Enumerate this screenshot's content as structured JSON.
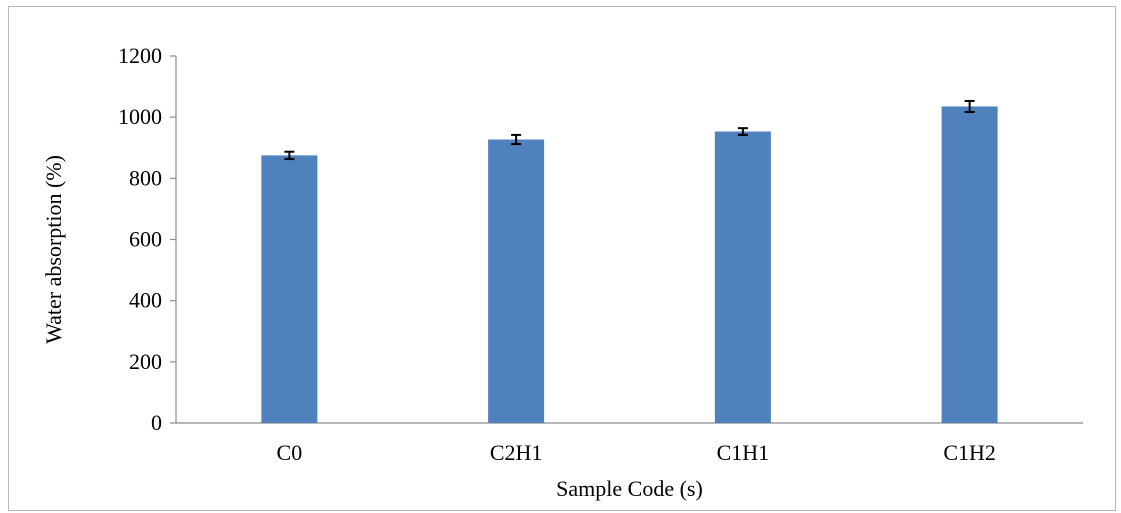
{
  "chart_data": {
    "type": "bar",
    "title": "",
    "xlabel": "Sample Code (s)",
    "ylabel": "Water absorption (%)",
    "categories": [
      "C0",
      "C2H1",
      "C1H1",
      "C1H2"
    ],
    "values": [
      875,
      927,
      953,
      1035
    ],
    "errors": [
      12,
      15,
      11,
      18
    ],
    "ylim": [
      0,
      1200
    ],
    "yticks": [
      0,
      200,
      400,
      600,
      800,
      1000,
      1200
    ],
    "grid": false,
    "legend": "none",
    "bar_color": "#4f81bd",
    "error_bar_color": "#000000"
  }
}
